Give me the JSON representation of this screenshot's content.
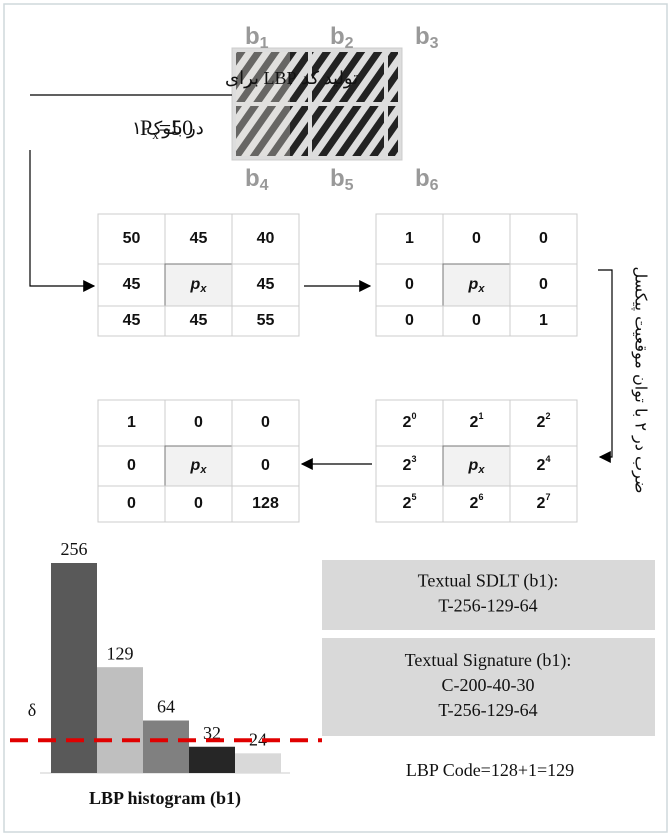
{
  "image": {
    "labels_top": [
      {
        "letter": "b",
        "index": "1"
      },
      {
        "letter": "b",
        "index": "2"
      },
      {
        "letter": "b",
        "index": "3"
      }
    ],
    "labels_bottom": [
      {
        "letter": "b",
        "index": "4"
      },
      {
        "letter": "b",
        "index": "5"
      },
      {
        "letter": "b",
        "index": "6"
      }
    ]
  },
  "caption": {
    "line1": "تولید کد LBP برای",
    "symbol": "P",
    "sub": "x",
    "eq": "=50",
    "rest": "در بلوک ۱"
  },
  "side_note": "ضرب در ۲ با توان موقعیت پیکسل",
  "grids": [
    {
      "rows": [
        [
          50,
          45,
          40
        ],
        [
          45,
          {
            "letter": "p",
            "sub": "x"
          },
          45
        ],
        [
          45,
          45,
          55
        ]
      ]
    },
    {
      "rows": [
        [
          1,
          0,
          0
        ],
        [
          0,
          {
            "letter": "p",
            "sub": "x"
          },
          0
        ],
        [
          0,
          0,
          1
        ]
      ]
    },
    {
      "rows": [
        [
          {
            "base": 2,
            "exp": 0
          },
          {
            "base": 2,
            "exp": 1
          },
          {
            "base": 2,
            "exp": 2
          }
        ],
        [
          {
            "base": 2,
            "exp": 3
          },
          {
            "letter": "p",
            "sub": "x"
          },
          {
            "base": 2,
            "exp": 4
          }
        ],
        [
          {
            "base": 2,
            "exp": 5
          },
          {
            "base": 2,
            "exp": 6
          },
          {
            "base": 2,
            "exp": 7
          }
        ]
      ]
    },
    {
      "rows": [
        [
          1,
          0,
          0
        ],
        [
          0,
          {
            "letter": "p",
            "sub": "x"
          },
          0
        ],
        [
          0,
          0,
          128
        ]
      ]
    }
  ],
  "histogram": {
    "type": "bar",
    "title": "LBP histogram (b1)",
    "values": [
      256,
      129,
      64,
      32,
      24
    ],
    "colors": [
      "#595959",
      "#bfbfbf",
      "#808080",
      "#262626",
      "#d9d9d9"
    ],
    "threshold": {
      "label": "δ",
      "value": 40,
      "color": "#e00000"
    }
  },
  "boxes": [
    {
      "lines": [
        "Textual SDLT (b1):",
        "T-256-129-64"
      ]
    },
    {
      "lines": [
        "Textual Signature (b1):",
        "C-200-40-30",
        "T-256-129-64"
      ]
    }
  ],
  "formula": "LBP Code=128+1=129"
}
